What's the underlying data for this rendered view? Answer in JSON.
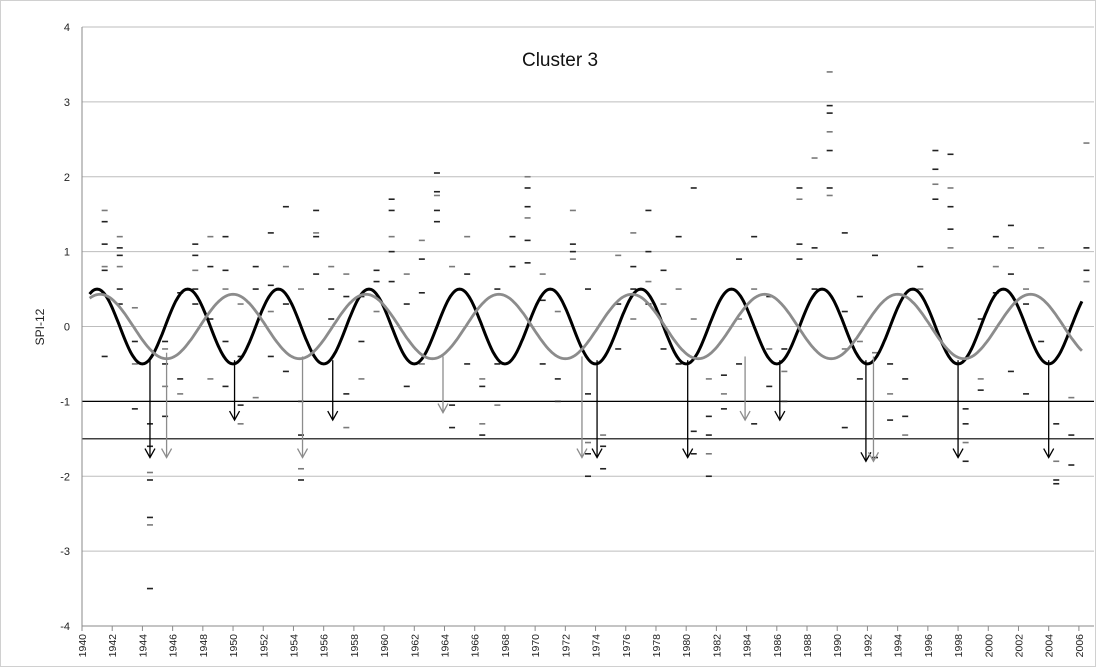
{
  "chart_data": {
    "type": "line",
    "title": "Cluster 3",
    "ylabel": "SPI-12",
    "xlabel": "",
    "xlim": [
      1940,
      2007
    ],
    "ylim": [
      -4,
      4
    ],
    "y_ticks": [
      4,
      3,
      2,
      1,
      0,
      -1,
      -2,
      -3,
      -4
    ],
    "x_ticks": [
      1940,
      1942,
      1944,
      1946,
      1948,
      1950,
      1952,
      1954,
      1956,
      1958,
      1960,
      1962,
      1964,
      1966,
      1968,
      1970,
      1972,
      1974,
      1976,
      1978,
      1980,
      1982,
      1984,
      1986,
      1988,
      1990,
      1992,
      1994,
      1996,
      1998,
      2000,
      2002,
      2004,
      2006
    ],
    "grid": true,
    "thresholds": [
      -1,
      -1.5
    ],
    "series": [
      {
        "color": "#000000",
        "amplitude": 0.5,
        "period_years": 6,
        "peak_year": 1941
      },
      {
        "color": "#8c8c8c",
        "amplitude": 0.43,
        "period_years": 8.8,
        "peak_year": 1941.2
      }
    ],
    "scatter": [
      [
        1941,
        1.55
      ],
      [
        1941,
        1.4
      ],
      [
        1941,
        1.1
      ],
      [
        1941,
        0.8
      ],
      [
        1941,
        0.75
      ],
      [
        1941,
        -0.4
      ],
      [
        1942,
        1.2
      ],
      [
        1942,
        1.05
      ],
      [
        1942,
        0.95
      ],
      [
        1942,
        0.8
      ],
      [
        1942,
        0.5
      ],
      [
        1942,
        0.3
      ],
      [
        1943,
        0.25
      ],
      [
        1943,
        -0.2
      ],
      [
        1943,
        -1.1
      ],
      [
        1943,
        -0.5
      ],
      [
        1944,
        -1.3
      ],
      [
        1944,
        -1.6
      ],
      [
        1944,
        -1.95
      ],
      [
        1944,
        -2.05
      ],
      [
        1944,
        -2.55
      ],
      [
        1944,
        -2.65
      ],
      [
        1944,
        -3.5
      ],
      [
        1945,
        -0.5
      ],
      [
        1945,
        -0.8
      ],
      [
        1945,
        -1.2
      ],
      [
        1945,
        -0.2
      ],
      [
        1945,
        -0.3
      ],
      [
        1946,
        0.45
      ],
      [
        1946,
        -0.7
      ],
      [
        1946,
        -0.9
      ],
      [
        1947,
        1.1
      ],
      [
        1947,
        0.95
      ],
      [
        1947,
        0.75
      ],
      [
        1947,
        0.5
      ],
      [
        1947,
        0.3
      ],
      [
        1948,
        1.2
      ],
      [
        1948,
        0.8
      ],
      [
        1948,
        0.1
      ],
      [
        1948,
        -0.7
      ],
      [
        1949,
        1.2
      ],
      [
        1949,
        0.75
      ],
      [
        1949,
        0.5
      ],
      [
        1949,
        -0.2
      ],
      [
        1949,
        -0.8
      ],
      [
        1950,
        0.3
      ],
      [
        1950,
        -0.4
      ],
      [
        1950,
        -1.05
      ],
      [
        1950,
        -1.3
      ],
      [
        1951,
        0.8
      ],
      [
        1951,
        0.5
      ],
      [
        1951,
        -0.95
      ],
      [
        1952,
        1.25
      ],
      [
        1952,
        0.55
      ],
      [
        1952,
        0.2
      ],
      [
        1952,
        -0.4
      ],
      [
        1953,
        1.6
      ],
      [
        1953,
        0.8
      ],
      [
        1953,
        0.3
      ],
      [
        1953,
        -0.6
      ],
      [
        1954,
        0.5
      ],
      [
        1954,
        -1.0
      ],
      [
        1954,
        -1.45
      ],
      [
        1954,
        -1.9
      ],
      [
        1954,
        -2.05
      ],
      [
        1955,
        1.55
      ],
      [
        1955,
        1.25
      ],
      [
        1955,
        1.2
      ],
      [
        1955,
        0.7
      ],
      [
        1956,
        0.8
      ],
      [
        1956,
        0.5
      ],
      [
        1956,
        0.1
      ],
      [
        1957,
        0.7
      ],
      [
        1957,
        0.4
      ],
      [
        1957,
        -0.9
      ],
      [
        1957,
        -1.35
      ],
      [
        1958,
        0.4
      ],
      [
        1958,
        -0.2
      ],
      [
        1958,
        -0.7
      ],
      [
        1959,
        0.75
      ],
      [
        1959,
        0.6
      ],
      [
        1959,
        0.2
      ],
      [
        1960,
        1.7
      ],
      [
        1960,
        1.55
      ],
      [
        1960,
        1.2
      ],
      [
        1960,
        1.0
      ],
      [
        1960,
        0.6
      ],
      [
        1961,
        0.7
      ],
      [
        1961,
        0.3
      ],
      [
        1961,
        -0.8
      ],
      [
        1962,
        1.15
      ],
      [
        1962,
        0.9
      ],
      [
        1962,
        0.45
      ],
      [
        1962,
        -0.5
      ],
      [
        1963,
        2.05
      ],
      [
        1963,
        1.8
      ],
      [
        1963,
        1.75
      ],
      [
        1963,
        1.55
      ],
      [
        1963,
        1.4
      ],
      [
        1964,
        0.8
      ],
      [
        1964,
        -1.05
      ],
      [
        1964,
        -1.35
      ],
      [
        1965,
        1.2
      ],
      [
        1965,
        0.7
      ],
      [
        1965,
        -0.5
      ],
      [
        1966,
        -1.3
      ],
      [
        1966,
        -1.45
      ],
      [
        1966,
        -0.8
      ],
      [
        1966,
        -0.7
      ],
      [
        1967,
        0.5
      ],
      [
        1967,
        -0.5
      ],
      [
        1967,
        -1.05
      ],
      [
        1968,
        1.2
      ],
      [
        1968,
        0.8
      ],
      [
        1969,
        2.0
      ],
      [
        1969,
        1.85
      ],
      [
        1969,
        1.6
      ],
      [
        1969,
        1.45
      ],
      [
        1969,
        1.15
      ],
      [
        1969,
        0.85
      ],
      [
        1970,
        0.7
      ],
      [
        1970,
        0.35
      ],
      [
        1970,
        -0.5
      ],
      [
        1971,
        0.2
      ],
      [
        1971,
        -0.7
      ],
      [
        1971,
        -1.0
      ],
      [
        1972,
        1.55
      ],
      [
        1972,
        1.1
      ],
      [
        1972,
        1.0
      ],
      [
        1972,
        0.9
      ],
      [
        1973,
        0.5
      ],
      [
        1973,
        -0.9
      ],
      [
        1973,
        -1.55
      ],
      [
        1973,
        -1.7
      ],
      [
        1973,
        -2.0
      ],
      [
        1974,
        -1.45
      ],
      [
        1974,
        -1.6
      ],
      [
        1974,
        -1.9
      ],
      [
        1975,
        0.95
      ],
      [
        1975,
        0.3
      ],
      [
        1975,
        -0.3
      ],
      [
        1976,
        1.25
      ],
      [
        1976,
        0.8
      ],
      [
        1976,
        0.5
      ],
      [
        1976,
        0.1
      ],
      [
        1977,
        1.55
      ],
      [
        1977,
        1.0
      ],
      [
        1977,
        0.6
      ],
      [
        1977,
        0.3
      ],
      [
        1978,
        0.75
      ],
      [
        1978,
        0.3
      ],
      [
        1978,
        -0.3
      ],
      [
        1979,
        1.2
      ],
      [
        1979,
        0.5
      ],
      [
        1979,
        -0.5
      ],
      [
        1980,
        1.85
      ],
      [
        1980,
        0.1
      ],
      [
        1980,
        -1.4
      ],
      [
        1980,
        -1.7
      ],
      [
        1981,
        -0.7
      ],
      [
        1981,
        -1.2
      ],
      [
        1981,
        -1.45
      ],
      [
        1981,
        -1.7
      ],
      [
        1981,
        -2.0
      ],
      [
        1982,
        -0.65
      ],
      [
        1982,
        -0.9
      ],
      [
        1982,
        -1.1
      ],
      [
        1983,
        0.9
      ],
      [
        1983,
        0.1
      ],
      [
        1983,
        -0.5
      ],
      [
        1984,
        1.2
      ],
      [
        1984,
        0.5
      ],
      [
        1984,
        -1.3
      ],
      [
        1985,
        0.4
      ],
      [
        1985,
        -0.3
      ],
      [
        1985,
        -0.8
      ],
      [
        1986,
        -0.3
      ],
      [
        1986,
        -0.6
      ],
      [
        1986,
        -1.0
      ],
      [
        1987,
        1.85
      ],
      [
        1987,
        1.7
      ],
      [
        1987,
        1.1
      ],
      [
        1987,
        0.9
      ],
      [
        1988,
        2.25
      ],
      [
        1988,
        1.05
      ],
      [
        1988,
        0.5
      ],
      [
        1989,
        3.4
      ],
      [
        1989,
        2.95
      ],
      [
        1989,
        2.85
      ],
      [
        1989,
        2.6
      ],
      [
        1989,
        2.35
      ],
      [
        1989,
        1.85
      ],
      [
        1989,
        1.75
      ],
      [
        1990,
        1.25
      ],
      [
        1990,
        0.2
      ],
      [
        1990,
        -0.3
      ],
      [
        1990,
        -1.35
      ],
      [
        1991,
        0.4
      ],
      [
        1991,
        -0.2
      ],
      [
        1991,
        -0.7
      ],
      [
        1992,
        0.95
      ],
      [
        1992,
        -0.35
      ],
      [
        1992,
        -1.75
      ],
      [
        1993,
        -0.5
      ],
      [
        1993,
        -0.9
      ],
      [
        1993,
        -1.25
      ],
      [
        1994,
        -1.2
      ],
      [
        1994,
        -1.45
      ],
      [
        1994,
        -0.7
      ],
      [
        1995,
        0.8
      ],
      [
        1995,
        0.5
      ],
      [
        1996,
        2.35
      ],
      [
        1996,
        2.1
      ],
      [
        1996,
        1.9
      ],
      [
        1996,
        1.7
      ],
      [
        1997,
        2.3
      ],
      [
        1997,
        1.85
      ],
      [
        1997,
        1.6
      ],
      [
        1997,
        1.3
      ],
      [
        1997,
        1.05
      ],
      [
        1998,
        -1.1
      ],
      [
        1998,
        -1.3
      ],
      [
        1998,
        -1.55
      ],
      [
        1998,
        -1.8
      ],
      [
        1999,
        0.1
      ],
      [
        1999,
        -0.7
      ],
      [
        1999,
        -0.85
      ],
      [
        2000,
        1.2
      ],
      [
        2000,
        0.8
      ],
      [
        2000,
        0.45
      ],
      [
        2001,
        1.35
      ],
      [
        2001,
        1.05
      ],
      [
        2001,
        0.7
      ],
      [
        2001,
        -0.6
      ],
      [
        2002,
        0.5
      ],
      [
        2002,
        0.3
      ],
      [
        2002,
        -0.9
      ],
      [
        2003,
        1.05
      ],
      [
        2003,
        -0.2
      ],
      [
        2004,
        -1.3
      ],
      [
        2004,
        -1.8
      ],
      [
        2004,
        -2.05
      ],
      [
        2004,
        -2.1
      ],
      [
        2005,
        -0.95
      ],
      [
        2005,
        -1.45
      ],
      [
        2005,
        -1.85
      ],
      [
        2006,
        2.45
      ],
      [
        2006,
        1.05
      ],
      [
        2006,
        0.75
      ],
      [
        2006,
        0.6
      ]
    ],
    "arrows": [
      {
        "x": 1944.5,
        "y_from": -0.45,
        "y_to": -1.75,
        "color": "#000000"
      },
      {
        "x": 1945.6,
        "y_from": -0.35,
        "y_to": -1.75,
        "color": "#8c8c8c"
      },
      {
        "x": 1950.1,
        "y_from": -0.45,
        "y_to": -1.25,
        "color": "#000000"
      },
      {
        "x": 1954.6,
        "y_from": -0.4,
        "y_to": -1.75,
        "color": "#8c8c8c"
      },
      {
        "x": 1956.6,
        "y_from": -0.45,
        "y_to": -1.25,
        "color": "#000000"
      },
      {
        "x": 1963.9,
        "y_from": -0.4,
        "y_to": -1.15,
        "color": "#8c8c8c"
      },
      {
        "x": 1973.1,
        "y_from": -0.4,
        "y_to": -1.75,
        "color": "#8c8c8c"
      },
      {
        "x": 1974.1,
        "y_from": -0.45,
        "y_to": -1.75,
        "color": "#000000"
      },
      {
        "x": 1980.1,
        "y_from": -0.45,
        "y_to": -1.75,
        "color": "#000000"
      },
      {
        "x": 1983.9,
        "y_from": -0.4,
        "y_to": -1.25,
        "color": "#8c8c8c"
      },
      {
        "x": 1986.2,
        "y_from": -0.45,
        "y_to": -1.25,
        "color": "#000000"
      },
      {
        "x": 1991.9,
        "y_from": -0.45,
        "y_to": -1.8,
        "color": "#000000"
      },
      {
        "x": 1992.4,
        "y_from": -0.4,
        "y_to": -1.8,
        "color": "#8c8c8c"
      },
      {
        "x": 1998.0,
        "y_from": -0.45,
        "y_to": -1.75,
        "color": "#000000"
      },
      {
        "x": 2004.0,
        "y_from": -0.45,
        "y_to": -1.75,
        "color": "#000000"
      }
    ]
  }
}
